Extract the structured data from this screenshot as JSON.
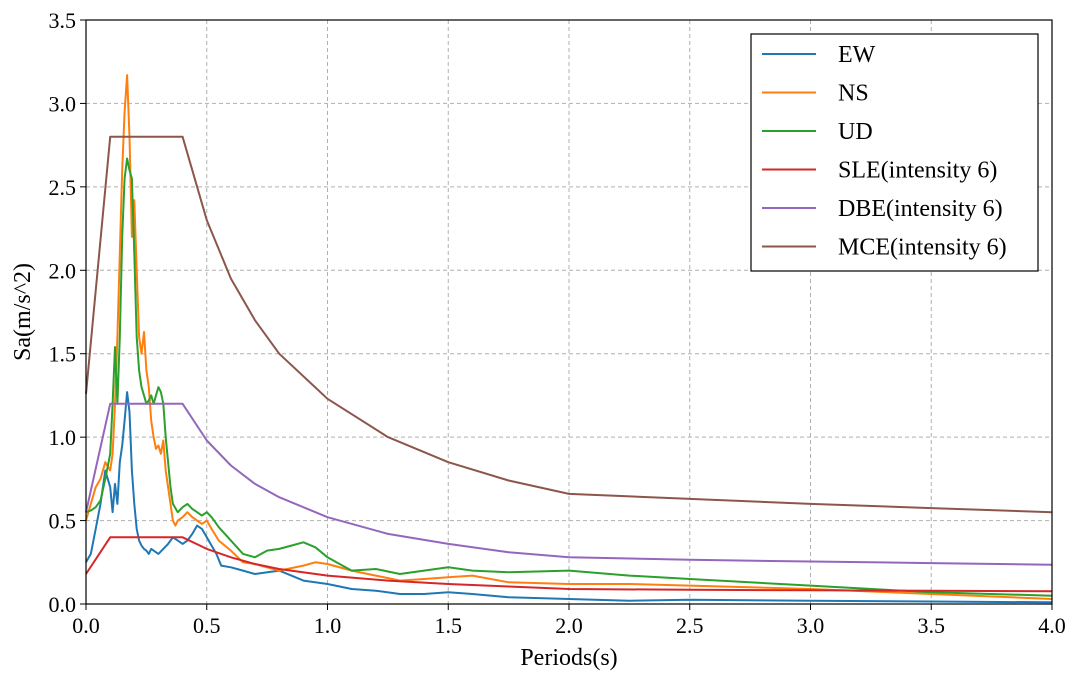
{
  "chart_data": {
    "type": "line",
    "title": "",
    "xlabel": "Periods(s)",
    "ylabel": "Sa(m/s^2)",
    "xlim": [
      0,
      4.0
    ],
    "ylim": [
      0,
      3.5
    ],
    "xticks": [
      0.0,
      0.5,
      1.0,
      1.5,
      2.0,
      2.5,
      3.0,
      3.5,
      4.0
    ],
    "yticks": [
      0.0,
      0.5,
      1.0,
      1.5,
      2.0,
      2.5,
      3.0,
      3.5
    ],
    "xtick_labels": [
      "0.0",
      "0.5",
      "1.0",
      "1.5",
      "2.0",
      "2.5",
      "3.0",
      "3.5",
      "4.0"
    ],
    "ytick_labels": [
      "0.0",
      "0.5",
      "1.0",
      "1.5",
      "2.0",
      "2.5",
      "3.0",
      "3.5"
    ],
    "grid": true,
    "legend_position": "top-right",
    "series": [
      {
        "name": "EW",
        "color": "#1f77b4",
        "x": [
          0.0,
          0.02,
          0.04,
          0.06,
          0.08,
          0.1,
          0.11,
          0.12,
          0.13,
          0.14,
          0.15,
          0.16,
          0.17,
          0.18,
          0.19,
          0.2,
          0.21,
          0.22,
          0.23,
          0.24,
          0.25,
          0.26,
          0.27,
          0.28,
          0.3,
          0.32,
          0.34,
          0.36,
          0.38,
          0.4,
          0.42,
          0.44,
          0.46,
          0.48,
          0.5,
          0.52,
          0.54,
          0.56,
          0.6,
          0.65,
          0.7,
          0.8,
          0.9,
          1.0,
          1.1,
          1.2,
          1.3,
          1.4,
          1.5,
          1.6,
          1.75,
          2.0,
          2.25,
          2.5,
          3.0,
          3.5,
          4.0
        ],
        "y": [
          0.25,
          0.3,
          0.45,
          0.6,
          0.8,
          0.7,
          0.55,
          0.72,
          0.6,
          0.85,
          0.95,
          1.1,
          1.27,
          1.15,
          0.8,
          0.6,
          0.45,
          0.38,
          0.35,
          0.33,
          0.32,
          0.3,
          0.33,
          0.32,
          0.3,
          0.33,
          0.36,
          0.4,
          0.38,
          0.36,
          0.38,
          0.42,
          0.47,
          0.45,
          0.4,
          0.35,
          0.3,
          0.23,
          0.22,
          0.2,
          0.18,
          0.2,
          0.14,
          0.12,
          0.09,
          0.08,
          0.06,
          0.06,
          0.07,
          0.06,
          0.04,
          0.03,
          0.02,
          0.025,
          0.02,
          0.015,
          0.01
        ]
      },
      {
        "name": "NS",
        "color": "#ff7f0e",
        "x": [
          0.0,
          0.02,
          0.04,
          0.06,
          0.08,
          0.1,
          0.11,
          0.12,
          0.13,
          0.14,
          0.15,
          0.16,
          0.17,
          0.18,
          0.19,
          0.2,
          0.21,
          0.22,
          0.23,
          0.24,
          0.25,
          0.26,
          0.27,
          0.28,
          0.29,
          0.3,
          0.31,
          0.32,
          0.33,
          0.34,
          0.35,
          0.36,
          0.37,
          0.38,
          0.4,
          0.42,
          0.44,
          0.46,
          0.48,
          0.5,
          0.52,
          0.55,
          0.6,
          0.65,
          0.7,
          0.8,
          0.9,
          0.95,
          1.0,
          1.1,
          1.2,
          1.3,
          1.4,
          1.5,
          1.6,
          1.75,
          2.0,
          2.25,
          2.5,
          3.0,
          3.5,
          4.0
        ],
        "y": [
          0.5,
          0.6,
          0.7,
          0.75,
          0.85,
          0.8,
          0.9,
          1.2,
          1.6,
          2.1,
          2.6,
          2.95,
          3.17,
          2.8,
          2.2,
          2.42,
          2.0,
          1.6,
          1.5,
          1.63,
          1.4,
          1.3,
          1.1,
          1.0,
          0.93,
          0.95,
          0.9,
          0.98,
          0.8,
          0.7,
          0.6,
          0.5,
          0.47,
          0.5,
          0.52,
          0.55,
          0.52,
          0.5,
          0.48,
          0.5,
          0.45,
          0.38,
          0.32,
          0.25,
          0.24,
          0.2,
          0.23,
          0.25,
          0.24,
          0.2,
          0.17,
          0.14,
          0.15,
          0.16,
          0.17,
          0.13,
          0.12,
          0.12,
          0.11,
          0.09,
          0.06,
          0.03
        ]
      },
      {
        "name": "UD",
        "color": "#2ca02c",
        "x": [
          0.0,
          0.02,
          0.04,
          0.06,
          0.08,
          0.1,
          0.11,
          0.12,
          0.13,
          0.14,
          0.15,
          0.16,
          0.17,
          0.18,
          0.19,
          0.2,
          0.21,
          0.22,
          0.23,
          0.24,
          0.25,
          0.26,
          0.27,
          0.28,
          0.29,
          0.3,
          0.31,
          0.32,
          0.33,
          0.34,
          0.35,
          0.36,
          0.38,
          0.4,
          0.42,
          0.44,
          0.46,
          0.48,
          0.5,
          0.52,
          0.55,
          0.6,
          0.65,
          0.7,
          0.75,
          0.8,
          0.85,
          0.9,
          0.95,
          1.0,
          1.05,
          1.1,
          1.2,
          1.3,
          1.4,
          1.5,
          1.6,
          1.75,
          2.0,
          2.25,
          2.5,
          3.0,
          3.5,
          4.0
        ],
        "y": [
          0.55,
          0.56,
          0.58,
          0.62,
          0.75,
          0.9,
          1.2,
          1.54,
          1.2,
          1.6,
          2.2,
          2.55,
          2.67,
          2.6,
          2.55,
          2.1,
          1.6,
          1.4,
          1.3,
          1.25,
          1.2,
          1.22,
          1.25,
          1.2,
          1.25,
          1.3,
          1.27,
          1.2,
          1.0,
          0.85,
          0.7,
          0.6,
          0.55,
          0.58,
          0.6,
          0.57,
          0.55,
          0.53,
          0.55,
          0.52,
          0.46,
          0.38,
          0.3,
          0.28,
          0.32,
          0.33,
          0.35,
          0.37,
          0.34,
          0.28,
          0.24,
          0.2,
          0.21,
          0.18,
          0.2,
          0.22,
          0.2,
          0.19,
          0.2,
          0.17,
          0.15,
          0.11,
          0.07,
          0.05
        ]
      },
      {
        "name": "SLE(intensity 6)",
        "color": "#d62728",
        "x": [
          0.0,
          0.1,
          0.4,
          0.5,
          0.6,
          0.7,
          0.8,
          1.0,
          1.25,
          1.5,
          1.75,
          2.0,
          2.5,
          3.0,
          3.5,
          4.0
        ],
        "y": [
          0.18,
          0.4,
          0.4,
          0.33,
          0.28,
          0.24,
          0.21,
          0.17,
          0.14,
          0.12,
          0.105,
          0.09,
          0.085,
          0.082,
          0.079,
          0.076
        ]
      },
      {
        "name": "DBE(intensity 6)",
        "color": "#9467bd",
        "x": [
          0.0,
          0.1,
          0.4,
          0.5,
          0.6,
          0.7,
          0.8,
          1.0,
          1.25,
          1.5,
          1.75,
          2.0,
          2.5,
          3.0,
          3.5,
          4.0
        ],
        "y": [
          0.55,
          1.2,
          1.2,
          0.98,
          0.83,
          0.72,
          0.64,
          0.52,
          0.42,
          0.36,
          0.31,
          0.28,
          0.265,
          0.255,
          0.245,
          0.235
        ]
      },
      {
        "name": "MCE(intensity 6)",
        "color": "#8c564b",
        "x": [
          0.0,
          0.1,
          0.4,
          0.5,
          0.6,
          0.7,
          0.8,
          1.0,
          1.25,
          1.5,
          1.75,
          2.0,
          2.5,
          3.0,
          3.5,
          4.0
        ],
        "y": [
          1.26,
          2.8,
          2.8,
          2.3,
          1.95,
          1.7,
          1.5,
          1.23,
          1.0,
          0.85,
          0.74,
          0.66,
          0.63,
          0.6,
          0.575,
          0.55
        ]
      }
    ]
  }
}
